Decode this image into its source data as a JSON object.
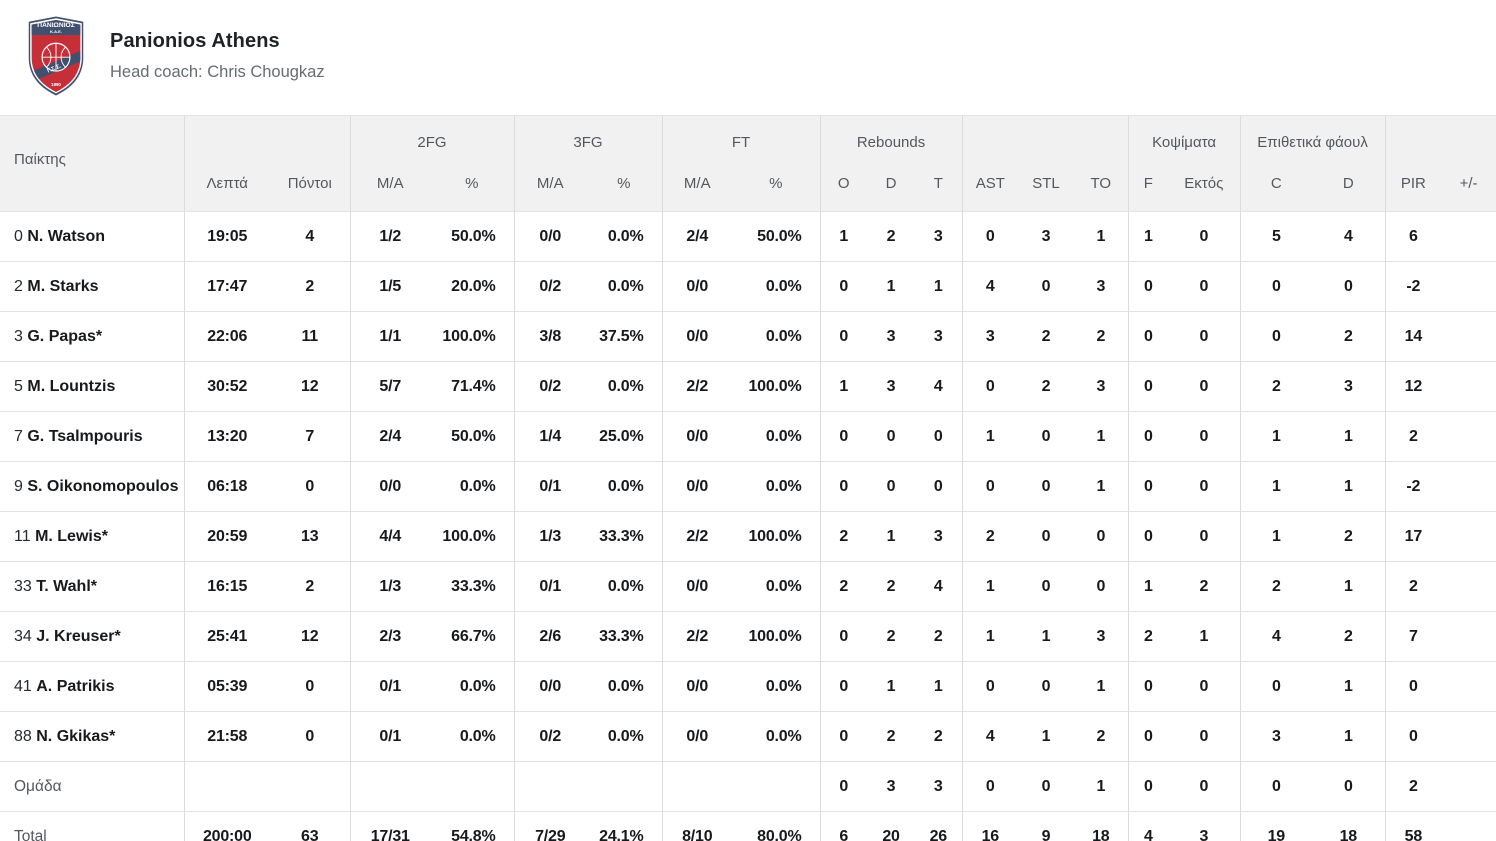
{
  "team": {
    "name": "Panionios Athens",
    "coach_line": "Head coach: Chris Chougkaz"
  },
  "logo": {
    "name_top": "ΠΑΝΙΩΝΙΟΣ",
    "name_sub": "Κ.Α.Ε.",
    "band_text": "Γ.Σ.Σ.",
    "year": "1890",
    "red": "#c62f38",
    "navy": "#40506e"
  },
  "table": {
    "groups": {
      "fg2": "2FG",
      "fg3": "3FG",
      "ft": "FT",
      "rebounds": "Rebounds",
      "blocks": "Κοψίματα",
      "fouls": "Επιθετικά φάουλ"
    },
    "columns": {
      "player": "Παίκτης",
      "minutes": "Λεπτά",
      "points": "Πόντοι",
      "ma": "M/A",
      "pct": "%",
      "reb_o": "O",
      "reb_d": "D",
      "reb_t": "T",
      "ast": "AST",
      "stl": "STL",
      "to": "TO",
      "blk_f": "F",
      "blk_out": "Εκτός",
      "foul_c": "C",
      "foul_d": "D",
      "pir": "PIR",
      "plusminus": "+/-"
    },
    "rows": [
      {
        "player": {
          "num": "0",
          "name": "N. Watson"
        },
        "cells": [
          "19:05",
          "4",
          "1/2",
          "50.0%",
          "0/0",
          "0.0%",
          "2/4",
          "50.0%",
          "1",
          "2",
          "3",
          "0",
          "3",
          "1",
          "1",
          "0",
          "5",
          "4",
          "6",
          ""
        ]
      },
      {
        "player": {
          "num": "2",
          "name": "M. Starks"
        },
        "cells": [
          "17:47",
          "2",
          "1/5",
          "20.0%",
          "0/2",
          "0.0%",
          "0/0",
          "0.0%",
          "0",
          "1",
          "1",
          "4",
          "0",
          "3",
          "0",
          "0",
          "0",
          "0",
          "-2",
          ""
        ]
      },
      {
        "player": {
          "num": "3",
          "name": "G. Papas*"
        },
        "cells": [
          "22:06",
          "11",
          "1/1",
          "100.0%",
          "3/8",
          "37.5%",
          "0/0",
          "0.0%",
          "0",
          "3",
          "3",
          "3",
          "2",
          "2",
          "0",
          "0",
          "0",
          "2",
          "14",
          ""
        ]
      },
      {
        "player": {
          "num": "5",
          "name": "M. Lountzis"
        },
        "cells": [
          "30:52",
          "12",
          "5/7",
          "71.4%",
          "0/2",
          "0.0%",
          "2/2",
          "100.0%",
          "1",
          "3",
          "4",
          "0",
          "2",
          "3",
          "0",
          "0",
          "2",
          "3",
          "12",
          ""
        ]
      },
      {
        "player": {
          "num": "7",
          "name": "G. Tsalmpouris"
        },
        "cells": [
          "13:20",
          "7",
          "2/4",
          "50.0%",
          "1/4",
          "25.0%",
          "0/0",
          "0.0%",
          "0",
          "0",
          "0",
          "1",
          "0",
          "1",
          "0",
          "0",
          "1",
          "1",
          "2",
          ""
        ]
      },
      {
        "player": {
          "num": "9",
          "name": "S. Oikonomopoulos"
        },
        "cells": [
          "06:18",
          "0",
          "0/0",
          "0.0%",
          "0/1",
          "0.0%",
          "0/0",
          "0.0%",
          "0",
          "0",
          "0",
          "0",
          "0",
          "1",
          "0",
          "0",
          "1",
          "1",
          "-2",
          ""
        ]
      },
      {
        "player": {
          "num": "11",
          "name": "M. Lewis*"
        },
        "cells": [
          "20:59",
          "13",
          "4/4",
          "100.0%",
          "1/3",
          "33.3%",
          "2/2",
          "100.0%",
          "2",
          "1",
          "3",
          "2",
          "0",
          "0",
          "0",
          "0",
          "1",
          "2",
          "17",
          ""
        ]
      },
      {
        "player": {
          "num": "33",
          "name": "T. Wahl*"
        },
        "cells": [
          "16:15",
          "2",
          "1/3",
          "33.3%",
          "0/1",
          "0.0%",
          "0/0",
          "0.0%",
          "2",
          "2",
          "4",
          "1",
          "0",
          "0",
          "1",
          "2",
          "2",
          "1",
          "2",
          ""
        ]
      },
      {
        "player": {
          "num": "34",
          "name": "J. Kreuser*"
        },
        "cells": [
          "25:41",
          "12",
          "2/3",
          "66.7%",
          "2/6",
          "33.3%",
          "2/2",
          "100.0%",
          "0",
          "2",
          "2",
          "1",
          "1",
          "3",
          "2",
          "1",
          "4",
          "2",
          "7",
          ""
        ]
      },
      {
        "player": {
          "num": "41",
          "name": "A. Patrikis"
        },
        "cells": [
          "05:39",
          "0",
          "0/1",
          "0.0%",
          "0/0",
          "0.0%",
          "0/0",
          "0.0%",
          "0",
          "1",
          "1",
          "0",
          "0",
          "1",
          "0",
          "0",
          "0",
          "1",
          "0",
          ""
        ]
      },
      {
        "player": {
          "num": "88",
          "name": "N. Gkikas*"
        },
        "cells": [
          "21:58",
          "0",
          "0/1",
          "0.0%",
          "0/2",
          "0.0%",
          "0/0",
          "0.0%",
          "0",
          "2",
          "2",
          "4",
          "1",
          "2",
          "0",
          "0",
          "3",
          "1",
          "0",
          ""
        ]
      },
      {
        "player": {
          "label": "Ομάδα"
        },
        "cells": [
          "",
          "",
          "",
          "",
          "",
          "",
          "",
          "",
          "0",
          "3",
          "3",
          "0",
          "0",
          "1",
          "0",
          "0",
          "0",
          "0",
          "2",
          ""
        ]
      },
      {
        "player": {
          "label": "Total"
        },
        "total": true,
        "cells": [
          "200:00",
          "63",
          "17/31",
          "54.8%",
          "7/29",
          "24.1%",
          "8/10",
          "80.0%",
          "6",
          "20",
          "26",
          "16",
          "9",
          "18",
          "4",
          "3",
          "19",
          "18",
          "58",
          ""
        ]
      }
    ]
  }
}
